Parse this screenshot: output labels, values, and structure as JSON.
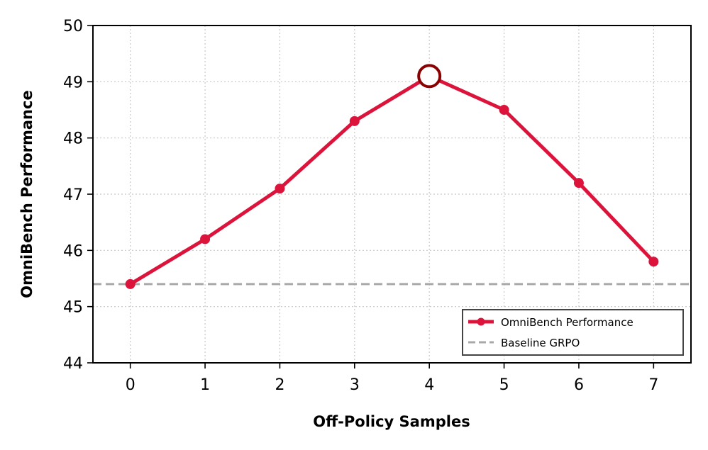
{
  "chart_data": {
    "type": "line",
    "title": "",
    "xlabel": "Off-Policy Samples",
    "ylabel": "OmniBench Performance",
    "x": [
      0,
      1,
      2,
      3,
      4,
      5,
      6,
      7
    ],
    "xlim": [
      -0.5,
      7.5
    ],
    "ylim": [
      44,
      50
    ],
    "xticks": [
      "0",
      "1",
      "2",
      "3",
      "4",
      "5",
      "6",
      "7"
    ],
    "yticks": [
      "44",
      "45",
      "46",
      "47",
      "48",
      "49",
      "50"
    ],
    "grid": true,
    "legend_position": "lower-right",
    "series": [
      {
        "name": "OmniBench Performance",
        "values": [
          45.4,
          46.2,
          47.1,
          48.3,
          49.1,
          48.5,
          47.2,
          45.8
        ],
        "color": "#DC143C",
        "style": "solid-with-markers"
      }
    ],
    "baseline": {
      "name": "Baseline GRPO",
      "value": 45.4,
      "color": "#A9A9A9",
      "style": "dashed"
    },
    "highlight": {
      "x": 4,
      "value": 49.1,
      "edge_color": "#8B0000",
      "face_color": "#FFFFFF"
    }
  }
}
